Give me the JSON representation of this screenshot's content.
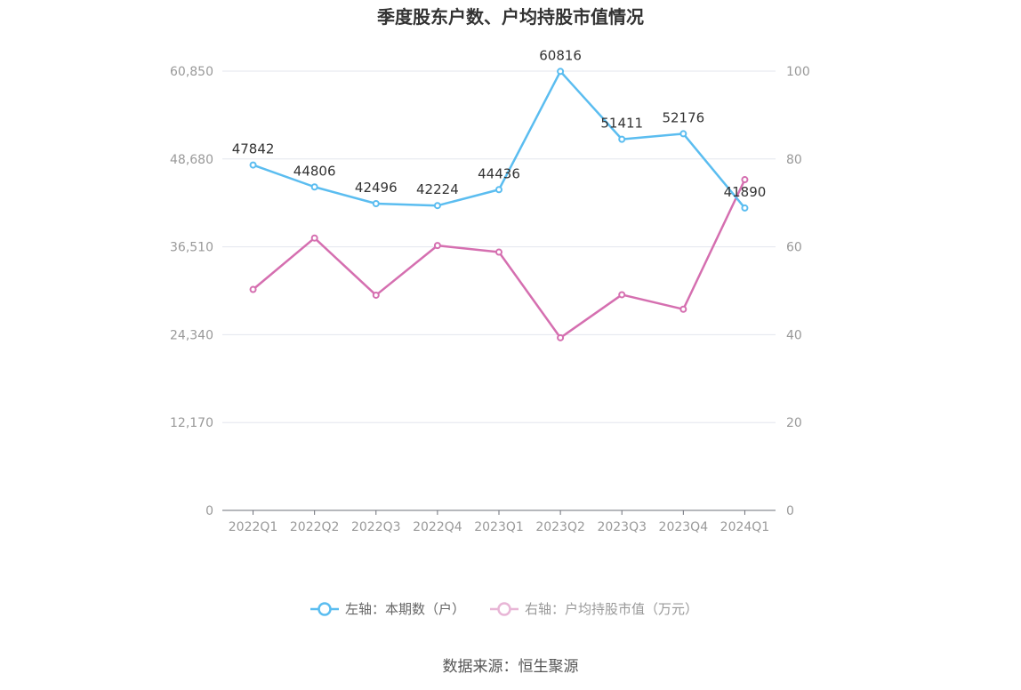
{
  "chart_data": {
    "type": "line",
    "title": "季度股东户数、户均持股市值情况",
    "categories": [
      "2022Q1",
      "2022Q2",
      "2022Q3",
      "2022Q4",
      "2023Q1",
      "2023Q2",
      "2023Q3",
      "2023Q4",
      "2024Q1"
    ],
    "left_axis": {
      "min": 0,
      "max": 60850,
      "ticks": [
        "0",
        "12,170",
        "24,340",
        "36,510",
        "48,680",
        "60,850"
      ]
    },
    "right_axis": {
      "min": 0,
      "max": 100,
      "ticks": [
        "0",
        "20",
        "40",
        "60",
        "80",
        "100"
      ]
    },
    "grid": true,
    "legend_position": "bottom",
    "series": [
      {
        "name": "左轴：本期数（户）",
        "axis": "left",
        "color": "#5bbdf0",
        "values": [
          47842,
          44806,
          42496,
          42224,
          44436,
          60816,
          51411,
          52176,
          41890
        ],
        "labels": [
          "47842",
          "44806",
          "42496",
          "42224",
          "44436",
          "60816",
          "51411",
          "52176",
          "41890"
        ]
      },
      {
        "name": "右轴：户均持股市值（万元）",
        "axis": "right",
        "color": "#d56fb0",
        "values": [
          50.3,
          62.0,
          49.0,
          60.3,
          58.8,
          39.3,
          49.1,
          45.8,
          75.3
        ]
      }
    ],
    "legend_inactive_color": "#e8b6d6"
  },
  "source": "数据来源：恒生聚源"
}
